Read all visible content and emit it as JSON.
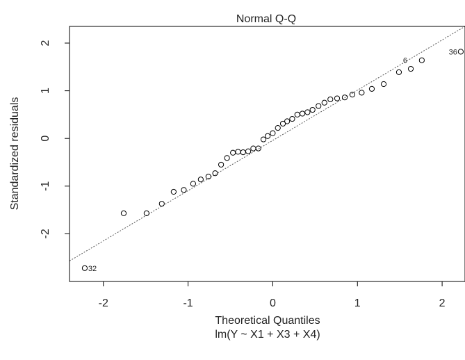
{
  "chart_data": {
    "type": "scatter",
    "title": "Normal Q-Q",
    "xlabel": "Theoretical Quantiles",
    "xlabel_sub": "lm(Y ~ X1 + X3 + X4)",
    "ylabel": "Standardized residuals",
    "xlim": [
      -2.4,
      2.27
    ],
    "ylim": [
      -3.0,
      2.35
    ],
    "x_ticks": [
      -2,
      -1,
      0,
      1,
      2
    ],
    "x_tick_labels": [
      "-2",
      "-1",
      "0",
      "1",
      "2"
    ],
    "y_ticks": [
      -2,
      -1,
      0,
      1,
      2
    ],
    "y_tick_labels": [
      "-2",
      "-1",
      "0",
      "1",
      "2"
    ],
    "grid": false,
    "reference_line": {
      "style": "dotted",
      "points": [
        [
          -2.4,
          -2.57
        ],
        [
          2.27,
          2.35
        ]
      ]
    },
    "series": [
      {
        "marker": "open-circle",
        "x": [
          -2.22,
          -1.76,
          -1.49,
          -1.31,
          -1.17,
          -1.05,
          -0.94,
          -0.85,
          -0.76,
          -0.68,
          -0.61,
          -0.54,
          -0.47,
          -0.41,
          -0.35,
          -0.29,
          -0.23,
          -0.17,
          -0.11,
          -0.06,
          0.0,
          0.06,
          0.12,
          0.17,
          0.23,
          0.29,
          0.35,
          0.41,
          0.47,
          0.54,
          0.61,
          0.68,
          0.76,
          0.85,
          0.94,
          1.05,
          1.17,
          1.31,
          1.49,
          1.63,
          1.76,
          2.22
        ],
        "y": [
          -2.72,
          -1.57,
          -1.57,
          -1.37,
          -1.12,
          -1.08,
          -0.95,
          -0.86,
          -0.8,
          -0.73,
          -0.55,
          -0.41,
          -0.3,
          -0.28,
          -0.29,
          -0.27,
          -0.21,
          -0.21,
          -0.02,
          0.05,
          0.11,
          0.22,
          0.31,
          0.36,
          0.41,
          0.5,
          0.52,
          0.55,
          0.6,
          0.68,
          0.75,
          0.82,
          0.84,
          0.86,
          0.92,
          0.96,
          1.04,
          1.14,
          1.39,
          1.46,
          1.64,
          1.82
        ]
      }
    ],
    "point_labels": [
      {
        "x": -2.22,
        "y": -2.72,
        "text": "32",
        "side": "right"
      },
      {
        "x": 1.63,
        "y": 1.64,
        "text": "6",
        "side": "left"
      },
      {
        "x": 2.22,
        "y": 1.82,
        "text": "36",
        "side": "left"
      }
    ]
  }
}
